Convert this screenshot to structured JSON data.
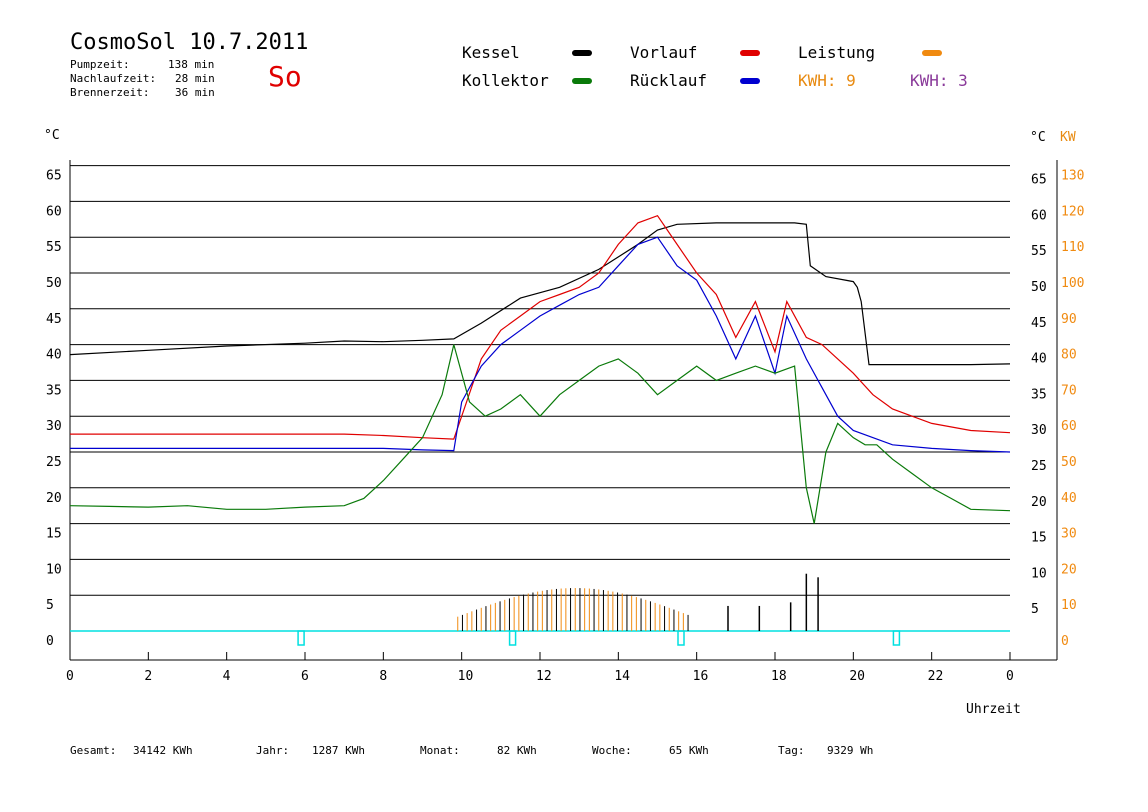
{
  "header": {
    "title": "CosmoSol 10.7.2011",
    "day": "So",
    "stats": [
      {
        "label": "Pumpzeit:",
        "value": "138 min"
      },
      {
        "label": "Nachlaufzeit:",
        "value": "28 min"
      },
      {
        "label": "Brennerzeit:",
        "value": "36 min"
      }
    ]
  },
  "legend": {
    "kessel": "Kessel",
    "kollektor": "Kollektor",
    "vorlauf": "Vorlauf",
    "ruecklauf": "Rücklauf",
    "leistung": "Leistung",
    "kwh1": "KWH: 9",
    "kwh2": "KWH: 3"
  },
  "axes": {
    "left_unit": "°C",
    "right_unit": "°C",
    "right_unit2": "KW",
    "xlabel": "Uhrzeit"
  },
  "colors": {
    "kessel": "#000000",
    "kollektor": "#0a7a0a",
    "vorlauf": "#e00000",
    "ruecklauf": "#0000d0",
    "leistung": "#f08a10",
    "kwh_purple": "#8a3a9a",
    "baseline": "#00e0e0"
  },
  "footer": [
    {
      "label": "Gesamt:",
      "value": "34142 KWh"
    },
    {
      "label": "Jahr:",
      "value": "1287 KWh"
    },
    {
      "label": "Monat:",
      "value": "82 KWh"
    },
    {
      "label": "Woche:",
      "value": "65 KWh"
    },
    {
      "label": "Tag:",
      "value": "9329 Wh"
    }
  ],
  "chart_data": {
    "type": "line",
    "xlabel": "Uhrzeit",
    "xlim": [
      0,
      24
    ],
    "x_ticks": [
      "0",
      "2",
      "4",
      "6",
      "8",
      "10",
      "12",
      "14",
      "16",
      "18",
      "20",
      "22",
      "0"
    ],
    "left_ticks": [
      "0",
      "5",
      "10",
      "15",
      "20",
      "25",
      "30",
      "35",
      "40",
      "45",
      "50",
      "55",
      "60",
      "65"
    ],
    "right_ticks_c": [
      "5",
      "10",
      "15",
      "20",
      "25",
      "30",
      "35",
      "40",
      "45",
      "50",
      "55",
      "60",
      "65"
    ],
    "right_ticks_kw": [
      "0",
      "10",
      "20",
      "30",
      "40",
      "50",
      "60",
      "70",
      "80",
      "90",
      "100",
      "110",
      "120",
      "130"
    ],
    "ylim_celsius": [
      0,
      65
    ],
    "ylim_kw": [
      0,
      130
    ],
    "series": [
      {
        "name": "Kessel",
        "x": [
          0,
          2,
          4,
          6,
          7,
          8,
          9,
          9.8,
          10.5,
          11.5,
          12.5,
          13.5,
          14.5,
          15,
          15.5,
          16.5,
          17.5,
          18.5,
          18.8,
          18.9,
          19.3,
          20.0,
          20.1,
          20.2,
          20.4,
          21,
          22,
          23,
          24
        ],
        "y": [
          38.6,
          39.2,
          39.8,
          40.2,
          40.5,
          40.4,
          40.6,
          40.8,
          43,
          46.5,
          48,
          50.5,
          54,
          56,
          56.8,
          57,
          57,
          57,
          56.8,
          51,
          49.5,
          48.8,
          48,
          46,
          37.2,
          37.2,
          37.2,
          37.2,
          37.3
        ]
      },
      {
        "name": "Vorlauf",
        "x": [
          0,
          2,
          4,
          6,
          7,
          8,
          9,
          9.8,
          10,
          10.5,
          11,
          11.5,
          12,
          12.5,
          13,
          13.5,
          14,
          14.5,
          15,
          15.5,
          16,
          16.5,
          17,
          17.5,
          18,
          18.3,
          18.8,
          19.2,
          19.6,
          20,
          20.5,
          21,
          22,
          23,
          24
        ],
        "y": [
          27.5,
          27.5,
          27.5,
          27.5,
          27.5,
          27.3,
          27.0,
          26.8,
          30,
          38,
          42,
          44,
          46,
          47,
          48,
          50,
          54,
          57,
          58,
          54,
          50,
          47,
          41,
          46,
          39,
          46,
          41,
          40,
          38,
          36,
          33,
          31,
          29,
          28,
          27.7
        ]
      },
      {
        "name": "Rücklauf",
        "x": [
          0,
          2,
          4,
          6,
          8,
          9,
          9.8,
          10,
          10.5,
          11,
          11.5,
          12,
          12.5,
          13,
          13.5,
          14,
          14.5,
          15,
          15.5,
          16,
          16.5,
          17,
          17.5,
          18,
          18.3,
          18.8,
          19.2,
          19.6,
          20,
          21,
          22,
          23,
          24
        ],
        "y": [
          25.5,
          25.5,
          25.5,
          25.5,
          25.5,
          25.3,
          25.2,
          32,
          37,
          40,
          42,
          44,
          45.5,
          47,
          48,
          51,
          54,
          55,
          51,
          49,
          44,
          38,
          44,
          36,
          44,
          38,
          34,
          30,
          28,
          26,
          25.5,
          25.2,
          25
        ]
      },
      {
        "name": "Kollektor",
        "x": [
          0,
          1,
          2,
          3,
          4,
          5,
          6,
          7,
          7.5,
          8,
          8.5,
          9,
          9.5,
          9.8,
          10.2,
          10.6,
          11,
          11.5,
          12,
          12.5,
          13,
          13.5,
          14,
          14.5,
          15,
          15.5,
          16,
          16.5,
          17,
          17.5,
          18,
          18.5,
          18.8,
          19.0,
          19.3,
          19.6,
          20,
          20.3,
          20.6,
          21,
          21.5,
          22,
          22.5,
          23,
          24
        ],
        "y": [
          17.5,
          17.4,
          17.3,
          17.5,
          17.0,
          17.0,
          17.3,
          17.5,
          18.5,
          21,
          24,
          27,
          33,
          40,
          32,
          30,
          31,
          33,
          30,
          33,
          35,
          37,
          38,
          36,
          33,
          35,
          37,
          35,
          36,
          37,
          36,
          37,
          20,
          15,
          25,
          29,
          27,
          26,
          26,
          24,
          22,
          20,
          18.5,
          17,
          16.8
        ]
      }
    ]
  }
}
